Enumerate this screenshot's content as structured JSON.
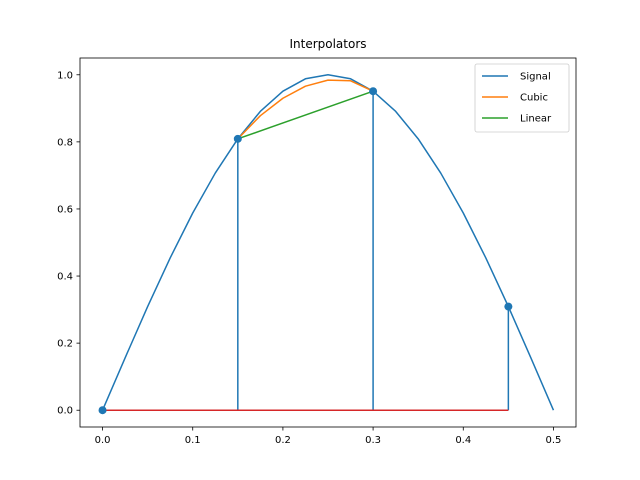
{
  "chart_data": {
    "type": "line",
    "title": "Interpolators",
    "xlabel": "",
    "ylabel": "",
    "xlim": [
      -0.025,
      0.525
    ],
    "ylim": [
      -0.05,
      1.05
    ],
    "xticks": [
      "0.0",
      "0.1",
      "0.2",
      "0.3",
      "0.4",
      "0.5"
    ],
    "yticks": [
      "0.0",
      "0.2",
      "0.4",
      "0.6",
      "0.8",
      "1.0"
    ],
    "grid": false,
    "legend_position": "top-right",
    "series": [
      {
        "name": "Signal",
        "color": "#1f77b4",
        "x": [
          0.0,
          0.025,
          0.05,
          0.075,
          0.1,
          0.125,
          0.15,
          0.175,
          0.2,
          0.225,
          0.25,
          0.275,
          0.3,
          0.325,
          0.35,
          0.375,
          0.4,
          0.425,
          0.45,
          0.475,
          0.5
        ],
        "y": [
          0.0,
          0.156,
          0.309,
          0.454,
          0.588,
          0.707,
          0.809,
          0.891,
          0.951,
          0.988,
          1.0,
          0.988,
          0.951,
          0.891,
          0.809,
          0.707,
          0.588,
          0.454,
          0.309,
          0.156,
          0.0
        ]
      },
      {
        "name": "Cubic",
        "color": "#ff7f0e",
        "x": [
          0.15,
          0.175,
          0.2,
          0.225,
          0.25,
          0.275,
          0.3
        ],
        "y": [
          0.809,
          0.878,
          0.93,
          0.966,
          0.984,
          0.982,
          0.951
        ]
      },
      {
        "name": "Linear",
        "color": "#2ca02c",
        "x": [
          0.15,
          0.3
        ],
        "y": [
          0.809,
          0.951
        ]
      }
    ],
    "stem": {
      "color": "#1f77b4",
      "baseline_color": "#d62728",
      "x": [
        0.0,
        0.15,
        0.3,
        0.45
      ],
      "y": [
        0.0,
        0.809,
        0.951,
        0.309
      ]
    }
  }
}
